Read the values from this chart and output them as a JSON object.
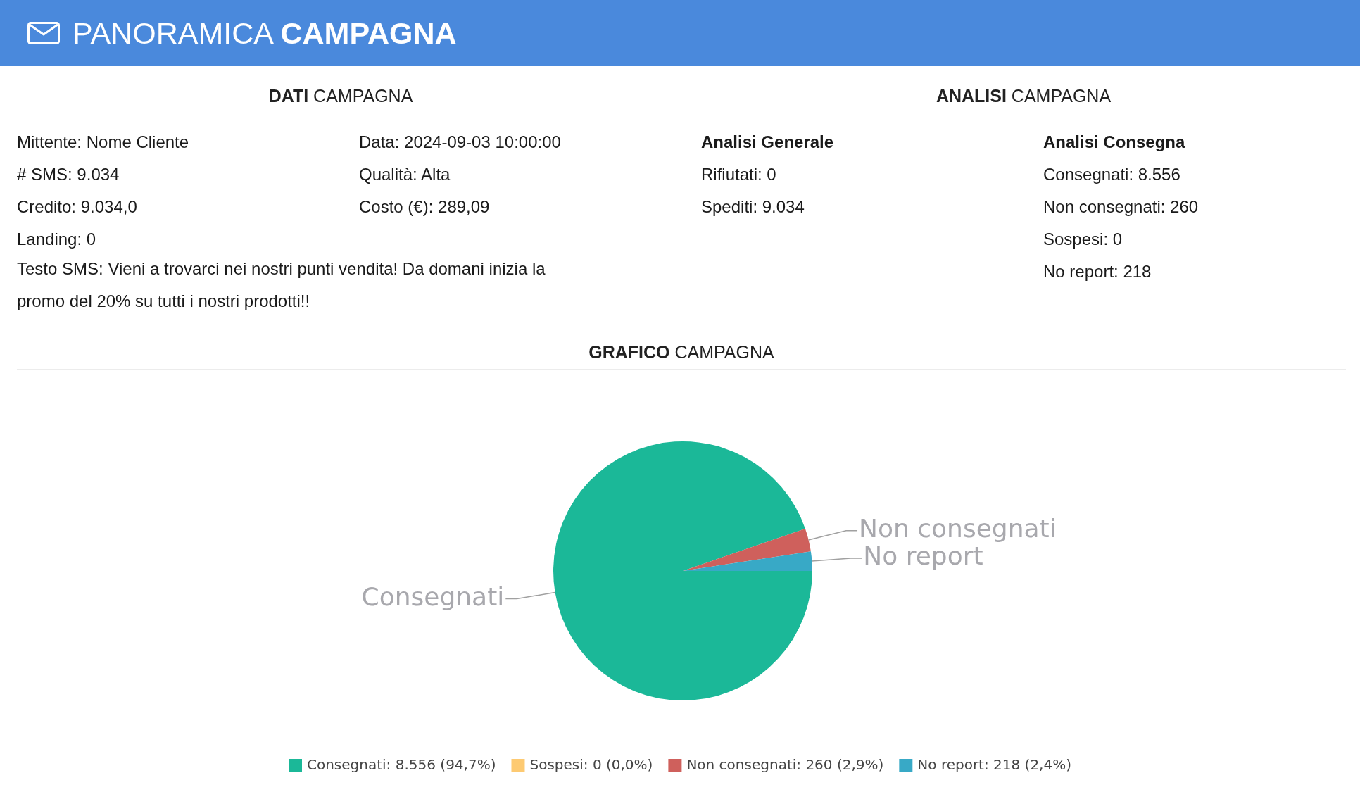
{
  "chart_data": [
    {
      "type": "other",
      "title": "PANORAMICA CAMPAGNA"
    },
    {
      "type": "other",
      "title": "DATI CAMPAGNA"
    },
    {
      "type": "other",
      "annotations": [
        "Mittente: Nome Cliente",
        "# SMS: 9.034",
        "Credito: 9.034,0",
        "Landing: 0"
      ]
    },
    {
      "type": "other",
      "annotations": [
        "Data: 2024-09-03 10:00:00",
        "Qualità: Alta",
        "Costo (€): 289,09"
      ]
    },
    {
      "type": "other",
      "annotations": [
        "Testo SMS: Vieni a trovarci nei nostri punti vendita! Da domani inizia la promo del 20% su tutti i nostri prodotti!!"
      ]
    },
    {
      "type": "other",
      "title": "ANALISI CAMPAGNA"
    },
    {
      "type": "other",
      "title": "Analisi Generale",
      "annotations": [
        "Rifiutati: 0",
        "Spediti: 9.034"
      ]
    },
    {
      "type": "other",
      "title": "Analisi Consegna",
      "annotations": [
        "Consegnati: 8.556",
        "Non consegnati: 260",
        "Sospesi: 0",
        "No report: 218"
      ]
    },
    {
      "type": "pie",
      "title": "GRAFICO CAMPAGNA",
      "categories": [
        "Consegnati",
        "Sospesi",
        "Non consegnati",
        "No report"
      ],
      "values": [
        8556,
        0,
        260,
        218
      ],
      "colors": [
        "#1bb898",
        "#fdca72",
        "#cf605c",
        "#38a9c6"
      ],
      "value_labels": [
        ": 8.556 (94,7%)",
        ": 0 (0,0%)",
        ": 260 (2,9%)",
        ": 218 (2,4%)"
      ],
      "legend": "bottom"
    }
  ]
}
